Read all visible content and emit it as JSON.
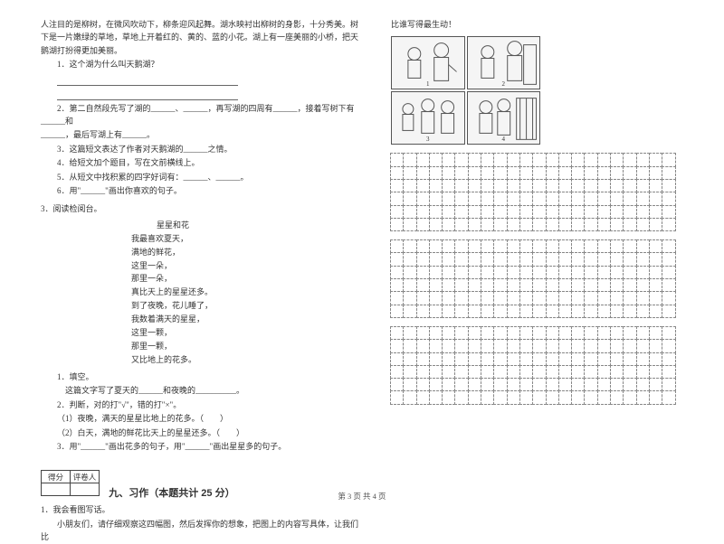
{
  "leftCol": {
    "para1": "人注目的是柳树，在微风吹动下，柳条迎风起舞。湖水映衬出柳树的身影，十分秀美。树下是一片嫩绿的草地，草地上开着红的、黄的、蓝的小花。湖上有一座美丽的小桥，把天鹅湖打扮得更加美丽。",
    "q1": "1．这个湖为什么叫天鹅湖？",
    "q2a": "2．第二自然段先写了湖的______、______，再写湖的四周有______，接着写树下有______和",
    "q2b": "______，最后写湖上有______。",
    "q3": "3．这篇短文表达了作者对天鹅湖的______之情。",
    "q4": "4．给短文加个题目，写在文前横线上。",
    "q5": "5．从短文中找积累的四字好词有：______、______。",
    "q6": "6．用\"______\"画出你喜欢的句子。",
    "sec3": "3．阅读检阅台。",
    "poemTitle": "星星和花",
    "poem": [
      "我最喜欢夏天，",
      "满地的鲜花，",
      "这里一朵，",
      "那里一朵，",
      "真比天上的星星还多。",
      "到了夜晚，花儿睡了，",
      "我数着满天的星星，",
      "这里一颗，",
      "那里一颗，",
      "又比地上的花多。"
    ],
    "p1": "1．填空。",
    "p1a": "这篇文字写了夏天的______和夜晚的__________。",
    "p2": "2．判断，对的打\"√\"，错的打\"×\"。",
    "p2a": "（1）夜晚，满天的星星比地上的花多。（　　）",
    "p2b": "（2）白天，满地的鲜花比天上的星星还多。（　　）",
    "p3": "3．用\"______\"画出花多的句子，用\"______\"画出星星多的句子。",
    "scoreHead1": "得分",
    "scoreHead2": "评卷人",
    "sectionNine": "九、习作（本题共计 25 分）",
    "w1": "1．我会看图写话。",
    "w1a": "小朋友们，请仔细观察这四幅图，然后发挥你的想象，把图上的内容写具体，让我们比"
  },
  "rightCol": {
    "topLine": "比谁写得最生动！",
    "picNums": [
      "1",
      "2",
      "3",
      "4"
    ]
  },
  "gridPaper": {
    "blocks": 3,
    "rowsPerBlock": 6,
    "cols": 22
  },
  "footer": "第 3 页 共 4 页"
}
